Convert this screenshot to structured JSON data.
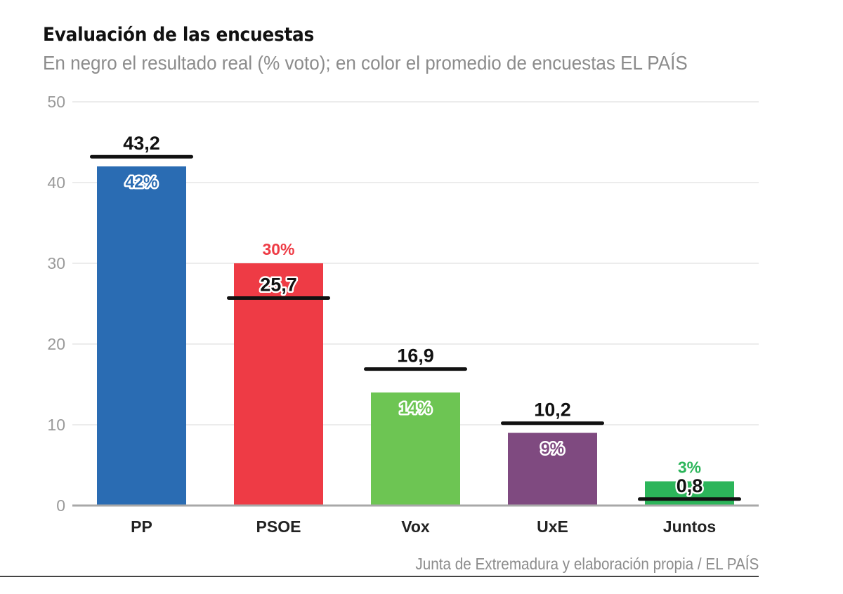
{
  "header": {
    "title": "Evaluación de las encuestas",
    "subtitle": "En negro el resultado real (% voto); en color el promedio de encuestas EL PAÍS"
  },
  "footer": {
    "source": "Junta de Extremadura y elaboración propia / EL PAÍS"
  },
  "chart_data": {
    "type": "bar",
    "title": "Evaluación de las encuestas",
    "subtitle": "En negro el resultado real (% voto); en color el promedio de encuestas EL PAÍS",
    "xlabel": "",
    "ylabel": "",
    "ylim": [
      0,
      50
    ],
    "yticks": [
      0,
      10,
      20,
      30,
      40,
      50
    ],
    "grid": true,
    "categories": [
      "PP",
      "PSOE",
      "Vox",
      "UxE",
      "Juntos"
    ],
    "series": [
      {
        "name": "Promedio de encuestas EL PAÍS",
        "kind": "bar",
        "values": [
          42,
          30,
          14,
          9,
          3
        ],
        "labels": [
          "42%",
          "30%",
          "14%",
          "9%",
          "3%"
        ],
        "colors": [
          "#2a6cb3",
          "#ee3b45",
          "#6dc553",
          "#7f4a80",
          "#2cb55a"
        ]
      },
      {
        "name": "Resultado real (% voto)",
        "kind": "marker-line",
        "color": "#111111",
        "values": [
          43.2,
          25.7,
          16.9,
          10.2,
          0.8
        ],
        "labels": [
          "43,2",
          "25,7",
          "16,9",
          "10,2",
          "0,8"
        ]
      }
    ],
    "source": "Junta de Extremadura y elaboración propia / EL PAÍS"
  }
}
